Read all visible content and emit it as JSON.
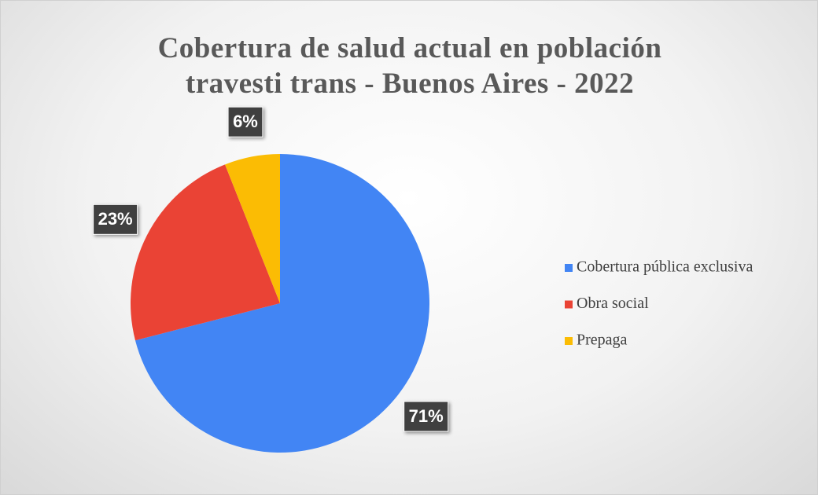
{
  "chart_data": {
    "type": "pie",
    "title": "Cobertura de salud actual en población travesti trans - Buenos Aires - 2022",
    "categories": [
      "Cobertura pública exclusiva",
      "Obra social",
      "Prepaga"
    ],
    "values": [
      71,
      23,
      6
    ],
    "value_labels": [
      "71%",
      "23%",
      "6%"
    ],
    "colors": [
      "#4285f4",
      "#ea4335",
      "#fbbc04"
    ],
    "start_angle": 0,
    "direction": "clockwise",
    "legend": "right"
  }
}
